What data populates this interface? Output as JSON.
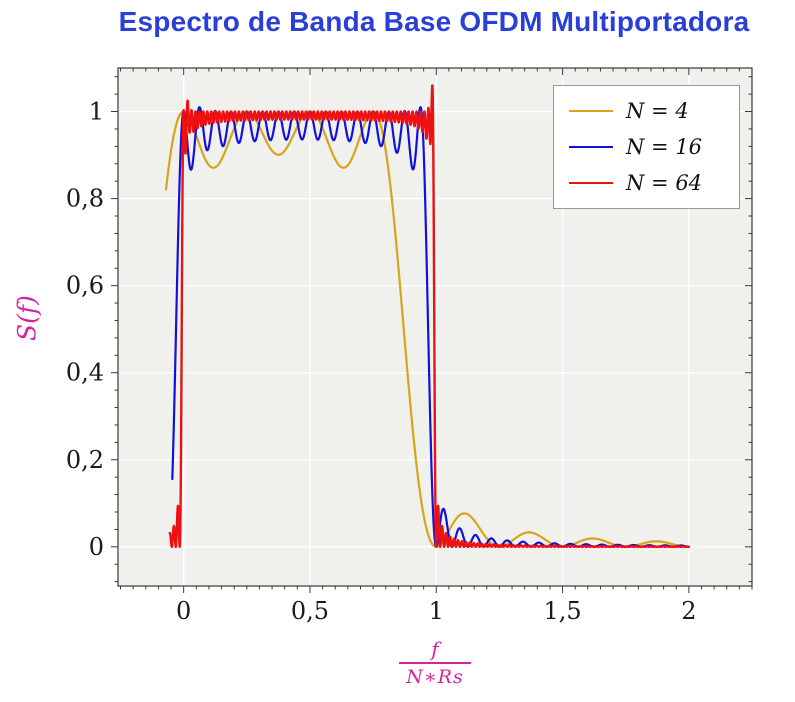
{
  "title": {
    "text": "Espectro de Banda Base OFDM Multiportadora",
    "color": "#2a3fd8"
  },
  "axes": {
    "ylabel": {
      "text": "S(f)",
      "color": "#d5239f"
    },
    "xlabel": {
      "numerator": "f",
      "denominator": "N∗Rs",
      "color": "#d5239f"
    },
    "tick_label_color": "#1a1a1a"
  },
  "chart_data": {
    "type": "line",
    "title": "Espectro de Banda Base OFDM Multiportadora",
    "xlabel": "f / (N*Rs)",
    "ylabel": "S(f)",
    "xlim": [
      -0.26,
      2.25
    ],
    "ylim": [
      -0.09,
      1.1
    ],
    "x_ticks": [
      {
        "v": 0,
        "label": "0"
      },
      {
        "v": 0.5,
        "label": "0,5"
      },
      {
        "v": 1,
        "label": "1"
      },
      {
        "v": 1.5,
        "label": "1,5"
      },
      {
        "v": 2,
        "label": "2"
      }
    ],
    "y_ticks": [
      {
        "v": 0,
        "label": "0"
      },
      {
        "v": 0.2,
        "label": "0,2"
      },
      {
        "v": 0.4,
        "label": "0,4"
      },
      {
        "v": 0.6,
        "label": "0,6"
      },
      {
        "v": 0.8,
        "label": "0,8"
      },
      {
        "v": 1,
        "label": "1"
      }
    ],
    "x_major_step": 0.5,
    "y_major_step": 0.2,
    "x_minor_step": 0.05,
    "y_minor_step": 0.04,
    "grid": true,
    "grid_color": "#ffffff",
    "plot_bg": "#f0f0ed",
    "frame_color": "#3a3a3a",
    "legend_position": "top-right inside",
    "model": "S_N(x) = [sum_{k=0..N-1} sinc^2(N·x − k)] · (1 − ripple·sin^2(π·N·x) + oL·exp(−((Nx−1)/0.7)^2) + oR·exp(−((Nx−N+1)/0.7)^2)), with x = f/(N·Rs): flat passband ≈ 1 over 0 ≤ x ≤ 1 with N ripple lobes, sharp roll-off at band edges (sharper for larger N), decaying sidelobes beyond x = 1",
    "series": [
      {
        "name": "N = 4",
        "N": 4,
        "color": "#d6a51d",
        "width": 2.2,
        "x_start": -0.07,
        "x_end": 2.0,
        "ripple": 0,
        "overshoot_left": 0,
        "overshoot_right": 0,
        "key_points": [
          [
            -0.07,
            0.91
          ],
          [
            0,
            1
          ],
          [
            0.125,
            0.89
          ],
          [
            0.25,
            1
          ],
          [
            0.375,
            0.9
          ],
          [
            0.5,
            1
          ],
          [
            0.625,
            0.87
          ],
          [
            0.75,
            1
          ],
          [
            0.875,
            0.48
          ],
          [
            1,
            0.02
          ],
          [
            1.125,
            0.07
          ],
          [
            1.25,
            0
          ],
          [
            1.375,
            0.033
          ],
          [
            1.625,
            0.018
          ],
          [
            1.875,
            0.011
          ],
          [
            2,
            0
          ]
        ]
      },
      {
        "name": "N = 16",
        "N": 16,
        "color": "#1111dd",
        "width": 2.2,
        "x_start": -0.045,
        "x_end": 2.0,
        "ripple": 0.04,
        "overshoot_left": 0.01,
        "overshoot_right": 0.01,
        "key_points": [
          [
            -0.033,
            0.08
          ],
          [
            0,
            0.95
          ],
          [
            0.031,
            1
          ],
          [
            0.25,
            0.97
          ],
          [
            0.5,
            0.96
          ],
          [
            0.75,
            0.97
          ],
          [
            0.94,
            1
          ],
          [
            0.97,
            0.9
          ],
          [
            1,
            0.05
          ],
          [
            1.031,
            0.08
          ],
          [
            1.094,
            0.033
          ],
          [
            1.156,
            0.018
          ],
          [
            1.25,
            0.008
          ],
          [
            2,
            0
          ]
        ]
      },
      {
        "name": "N = 64",
        "N": 64,
        "color": "#ee1111",
        "width": 2.4,
        "x_start": -0.055,
        "x_end": 2.0,
        "ripple": 0.012,
        "overshoot_left": 0.025,
        "overshoot_right": 0.06,
        "key_points": [
          [
            -0.05,
            0
          ],
          [
            0.005,
            1.02
          ],
          [
            0.016,
            1.03
          ],
          [
            0.25,
            0.99
          ],
          [
            0.5,
            0.99
          ],
          [
            0.75,
            0.99
          ],
          [
            0.984,
            1.06
          ],
          [
            1,
            0
          ],
          [
            1.023,
            0.07
          ],
          [
            1.1,
            0.01
          ],
          [
            1.25,
            0.004
          ],
          [
            2,
            0
          ]
        ]
      }
    ]
  }
}
